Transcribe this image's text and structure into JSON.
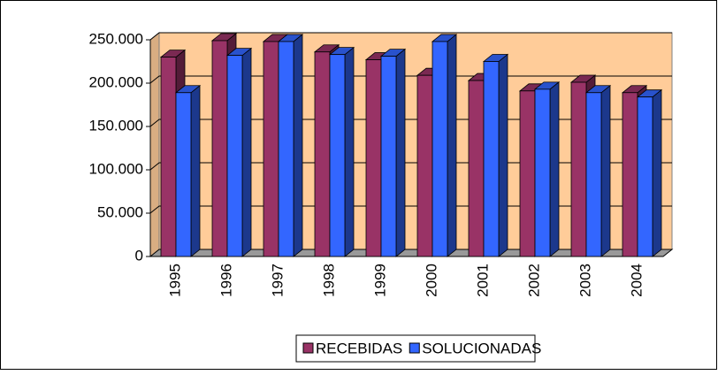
{
  "chart_data": {
    "type": "bar3d",
    "categories": [
      "1995",
      "1996",
      "1997",
      "1998",
      "1999",
      "2000",
      "2001",
      "2002",
      "2003",
      "2004"
    ],
    "series": [
      {
        "name": "RECEBIDAS",
        "color": "#993366",
        "values": [
          230000,
          249000,
          248000,
          236000,
          227000,
          209000,
          203000,
          191000,
          201000,
          189000
        ]
      },
      {
        "name": "SOLUCIONADAS",
        "color": "#3366FF",
        "values": [
          189000,
          232000,
          248000,
          233000,
          231000,
          248000,
          225000,
          193000,
          189000,
          184000
        ]
      }
    ],
    "ylim": [
      0,
      250000
    ],
    "yticks": [
      0,
      {
        "value": 50000,
        "label": "50.000"
      },
      {
        "value": 100000,
        "label": "100.000"
      },
      {
        "value": 150000,
        "label": "150.000"
      },
      {
        "value": 200000,
        "label": "200.000"
      },
      {
        "value": 250000,
        "label": "250.000"
      }
    ],
    "grid": true,
    "legend": "bottom",
    "wall_color": "#FFCC99",
    "floor_color": "#999999"
  }
}
